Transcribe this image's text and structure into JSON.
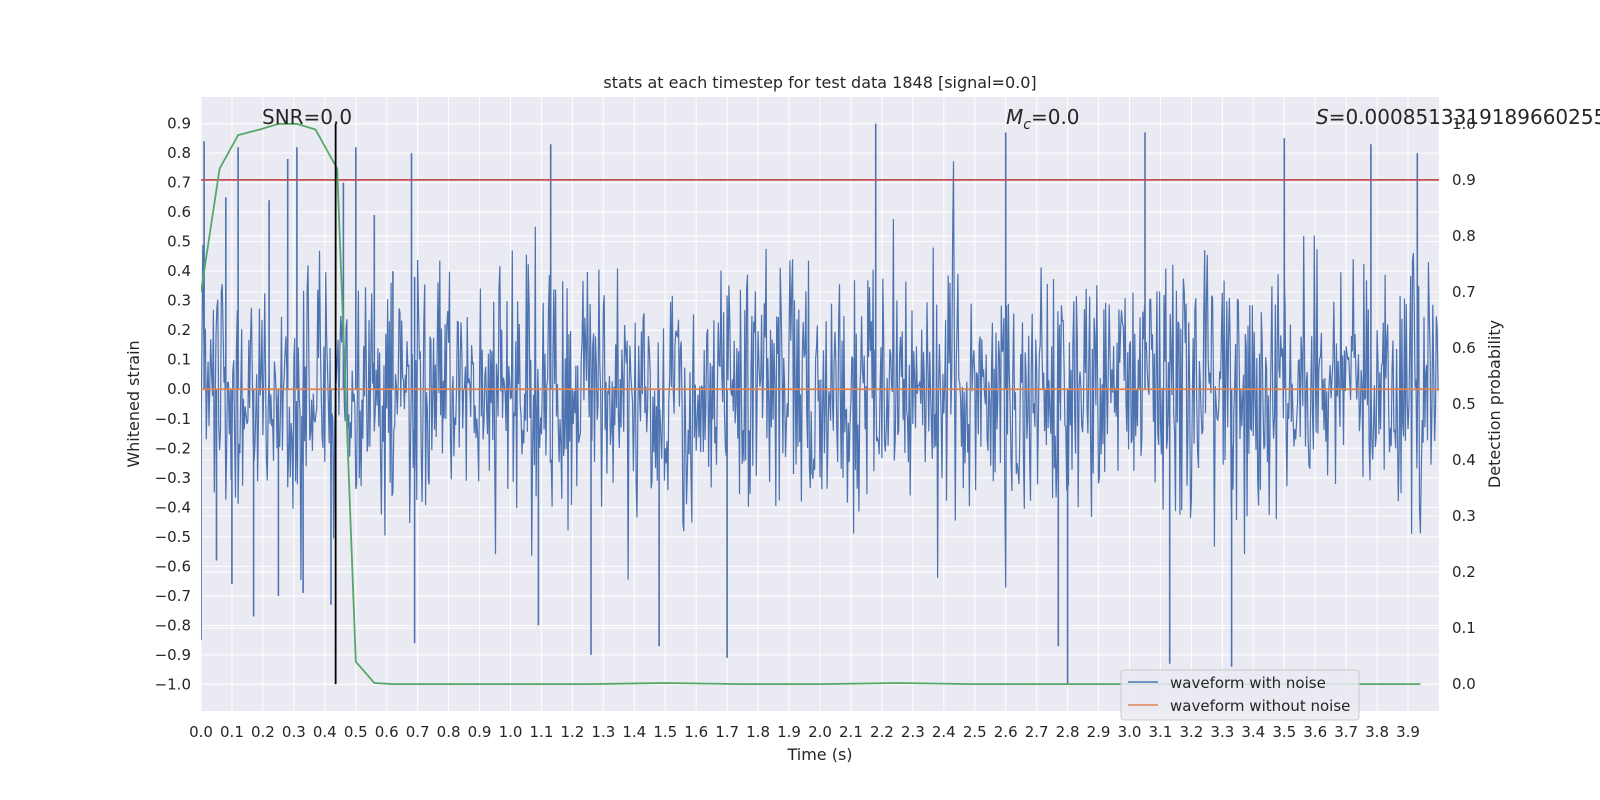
{
  "chart_data": {
    "type": "line",
    "title": "stats at each timestep for test data 1848 [signal=0.0]",
    "xlabel": "Time (s)",
    "ylabel": "Whitened strain",
    "y2label": "Detection probability",
    "xlim": [
      0.0,
      4.0
    ],
    "ylim": [
      -1.09,
      0.99
    ],
    "y2lim": [
      -0.048,
      1.048
    ],
    "x_ticks": [
      0.0,
      0.1,
      0.2,
      0.3,
      0.4,
      0.5,
      0.6,
      0.7,
      0.8,
      0.9,
      1.0,
      1.1,
      1.2,
      1.3,
      1.4,
      1.5,
      1.6,
      1.7,
      1.8,
      1.9,
      2.0,
      2.1,
      2.2,
      2.3,
      2.4,
      2.5,
      2.6,
      2.7,
      2.8,
      2.9,
      3.0,
      3.1,
      3.2,
      3.3,
      3.4,
      3.5,
      3.6,
      3.7,
      3.8,
      3.9
    ],
    "y_ticks": [
      -1.0,
      -0.9,
      -0.8,
      -0.7,
      -0.6,
      -0.5,
      -0.4,
      -0.3,
      -0.2,
      -0.1,
      0.0,
      0.1,
      0.2,
      0.3,
      0.4,
      0.5,
      0.6,
      0.7,
      0.8,
      0.9
    ],
    "y2_ticks": [
      0.0,
      0.1,
      0.2,
      0.3,
      0.4,
      0.5,
      0.6,
      0.7,
      0.8,
      0.9,
      1.0
    ],
    "grid": true,
    "legend_position": "lower right",
    "series": [
      {
        "name": "waveform with noise",
        "color": "#4c72b0",
        "axis": "left",
        "note": "dense noise, roughly spanning -1.0 to 0.9; individual samples not readable",
        "envelope_peaks": [
          [
            0.0,
            -0.85
          ],
          [
            0.01,
            0.84
          ],
          [
            0.05,
            -0.58
          ],
          [
            0.08,
            0.65
          ],
          [
            0.1,
            -0.66
          ],
          [
            0.12,
            0.82
          ],
          [
            0.17,
            -0.77
          ],
          [
            0.22,
            0.64
          ],
          [
            0.25,
            -0.7
          ],
          [
            0.28,
            0.78
          ],
          [
            0.31,
            0.82
          ],
          [
            0.33,
            -0.69
          ],
          [
            0.42,
            -0.73
          ],
          [
            0.46,
            0.7
          ],
          [
            0.5,
            0.82
          ],
          [
            0.56,
            0.59
          ],
          [
            0.62,
            0.4
          ],
          [
            0.68,
            0.8
          ],
          [
            0.69,
            -0.86
          ],
          [
            0.69,
            0.38
          ],
          [
            1.09,
            -0.8
          ],
          [
            1.13,
            0.83
          ],
          [
            1.26,
            -0.9
          ],
          [
            1.48,
            -0.87
          ],
          [
            1.7,
            -0.91
          ],
          [
            2.18,
            0.9
          ],
          [
            2.6,
            0.87
          ],
          [
            2.77,
            -0.87
          ],
          [
            2.8,
            -1.0
          ],
          [
            3.05,
            0.87
          ],
          [
            3.13,
            -0.93
          ],
          [
            3.33,
            -0.94
          ],
          [
            3.5,
            0.85
          ],
          [
            3.78,
            0.83
          ],
          [
            3.93,
            0.8
          ]
        ]
      },
      {
        "name": "waveform without noise",
        "color": "#dd8452",
        "axis": "left",
        "x": [
          0.0,
          4.0
        ],
        "y": [
          0.0,
          0.0
        ]
      },
      {
        "color": "#55a868",
        "axis": "right",
        "x": [
          0.0,
          0.06,
          0.12,
          0.19,
          0.25,
          0.31,
          0.37,
          0.44,
          0.5,
          0.56,
          0.62,
          0.69,
          0.75,
          0.81,
          0.87,
          0.94,
          1.0,
          1.25,
          1.5,
          1.75,
          2.0,
          2.25,
          2.5,
          2.75,
          3.0,
          3.25,
          3.5,
          3.75,
          3.94
        ],
        "y": [
          0.7,
          0.92,
          0.98,
          0.99,
          1.0,
          1.0,
          0.99,
          0.92,
          0.04,
          0.002,
          0.0,
          0.0,
          0.0,
          0.0,
          0.0,
          0.0,
          0.0,
          0.0,
          0.002,
          0.0,
          0.0,
          0.002,
          0.0,
          0.0,
          0.0,
          0.0,
          0.0,
          0.0,
          0.0
        ]
      }
    ],
    "hlines": [
      {
        "axis": "right",
        "y": 0.9,
        "color": "#c44e52"
      }
    ],
    "vlines": [
      {
        "x": 0.435,
        "y2_range": [
          0.0,
          1.0
        ],
        "color": "#000000"
      }
    ],
    "annotations": [
      {
        "text": "SNR=0.0",
        "anchor": "top-left"
      },
      {
        "text": "M",
        "sub": "c",
        "suffix": "=0.0",
        "anchor": "top-center"
      },
      {
        "text": "S",
        "suffix": "=0.0008513319189660255",
        "anchor": "top-right"
      }
    ]
  },
  "colors": {
    "plot_background": "#eaeaf2",
    "grid": "#ffffff"
  }
}
